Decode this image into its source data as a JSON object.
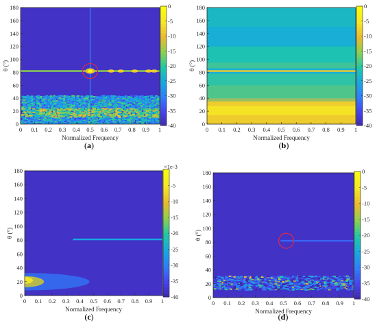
{
  "figure": {
    "colormap": [
      "#3e26a8",
      "#4743f0",
      "#2f7efc",
      "#17a8e2",
      "#1fc8a6",
      "#8cd04f",
      "#e9ba2f",
      "#f5e629",
      "#f9fb0e"
    ],
    "background_color": "#3d27a6"
  },
  "chart_data": [
    {
      "type": "heatmap",
      "id": "a",
      "caption_letter": "a",
      "xlabel": "Normalized Frequency",
      "ylabel": "θ (°)",
      "xlim": [
        0,
        1
      ],
      "ylim": [
        0,
        180
      ],
      "xticks": [
        "0",
        "0.1",
        "0.2",
        "0.3",
        "0.4",
        "0.5",
        "0.6",
        "0.7",
        "0.8",
        "0.9",
        "1"
      ],
      "yticks": [
        "0",
        "20",
        "40",
        "60",
        "80",
        "100",
        "120",
        "140",
        "160",
        "180"
      ],
      "colorbar": {
        "range": [
          -40,
          0
        ],
        "ticks": [
          "0",
          "-5",
          "-10",
          "-15",
          "-20",
          "-25",
          "-30",
          "-35",
          "-40"
        ],
        "exponent": ""
      },
      "features": {
        "target_line": {
          "theta": 82,
          "x_from": 0.0,
          "x_to": 1.0,
          "level": -15
        },
        "peak": {
          "x": 0.5,
          "theta": 82,
          "level": 0
        },
        "spots": [
          {
            "x": 0.65,
            "theta": 82
          },
          {
            "x": 0.72,
            "theta": 82
          },
          {
            "x": 0.82,
            "theta": 82
          },
          {
            "x": 0.92,
            "theta": 82
          },
          {
            "x": 0.96,
            "theta": 82
          }
        ],
        "clutter_band": {
          "theta_from": 0,
          "theta_to": 45,
          "level": -25
        },
        "circle": {
          "x": 0.5,
          "theta": 82
        }
      }
    },
    {
      "type": "heatmap",
      "id": "b",
      "caption_letter": "b",
      "xlabel": "Normalized Frequency",
      "ylabel": "θ (°)",
      "xlim": [
        0,
        1
      ],
      "ylim": [
        0,
        180
      ],
      "xticks": [
        "0",
        "0.1",
        "0.2",
        "0.3",
        "0.4",
        "0.5",
        "0.6",
        "0.7",
        "0.8",
        "0.9",
        "1"
      ],
      "yticks": [
        "0",
        "20",
        "40",
        "60",
        "80",
        "100",
        "120",
        "140",
        "160",
        "180"
      ],
      "colorbar": {
        "range": [
          -40,
          0
        ],
        "ticks": [
          "0",
          "-5",
          "-10",
          "-15",
          "-20",
          "-25",
          "-30",
          "-35",
          "-40"
        ],
        "exponent": ""
      },
      "features": {
        "target_line": {
          "theta": 82,
          "x_from": 0.0,
          "x_to": 1.0,
          "level": -8
        },
        "clutter_band": {
          "theta_from": 0,
          "theta_to": 35,
          "level": -8
        }
      }
    },
    {
      "type": "heatmap",
      "id": "c",
      "caption_letter": "c",
      "xlabel": "Normalized Frequency",
      "ylabel": "θ (°)",
      "xlim": [
        0,
        1
      ],
      "ylim": [
        0,
        180
      ],
      "xticks": [
        "0",
        "0.1",
        "0.2",
        "0.3",
        "0.4",
        "0.5",
        "0.6",
        "0.7",
        "0.8",
        "0.9",
        "1"
      ],
      "yticks": [
        "0",
        "20",
        "40",
        "60",
        "80",
        "100",
        "120",
        "140",
        "160",
        "180"
      ],
      "colorbar": {
        "range": [
          -40,
          0
        ],
        "ticks": [
          "-5",
          "-10",
          "-15",
          "-20",
          "-25",
          "-30",
          "-35",
          "-40"
        ],
        "exponent": "×1e-3"
      },
      "features": {
        "target_line": {
          "theta": 81,
          "x_from": 0.35,
          "x_to": 1.0,
          "level": -25
        },
        "clutter_band": {
          "theta_from": 5,
          "theta_to": 30,
          "level": -12
        }
      }
    },
    {
      "type": "heatmap",
      "id": "d",
      "caption_letter": "d",
      "xlabel": "Normalized Frequency",
      "ylabel": "θ (°)",
      "xlim": [
        0,
        1
      ],
      "ylim": [
        0,
        180
      ],
      "xticks": [
        "0",
        "0.1",
        "0.2",
        "0.3",
        "0.4",
        "0.5",
        "0.6",
        "0.7",
        "0.8",
        "0.9",
        "1"
      ],
      "yticks": [
        "0",
        "20",
        "40",
        "60",
        "80",
        "100",
        "120",
        "140",
        "160",
        "180"
      ],
      "colorbar": {
        "range": [
          -40,
          0
        ],
        "ticks": [
          "0",
          "-5",
          "-10",
          "-15",
          "-20",
          "-25",
          "-30",
          "-35",
          "-40"
        ],
        "exponent": ""
      },
      "features": {
        "target_line": {
          "theta": 82,
          "x_from": 0.48,
          "x_to": 1.0,
          "level": -32
        },
        "clutter_band": {
          "theta_from": 12,
          "theta_to": 32,
          "level": -28
        },
        "circle": {
          "x": 0.52,
          "theta": 82
        }
      }
    }
  ]
}
